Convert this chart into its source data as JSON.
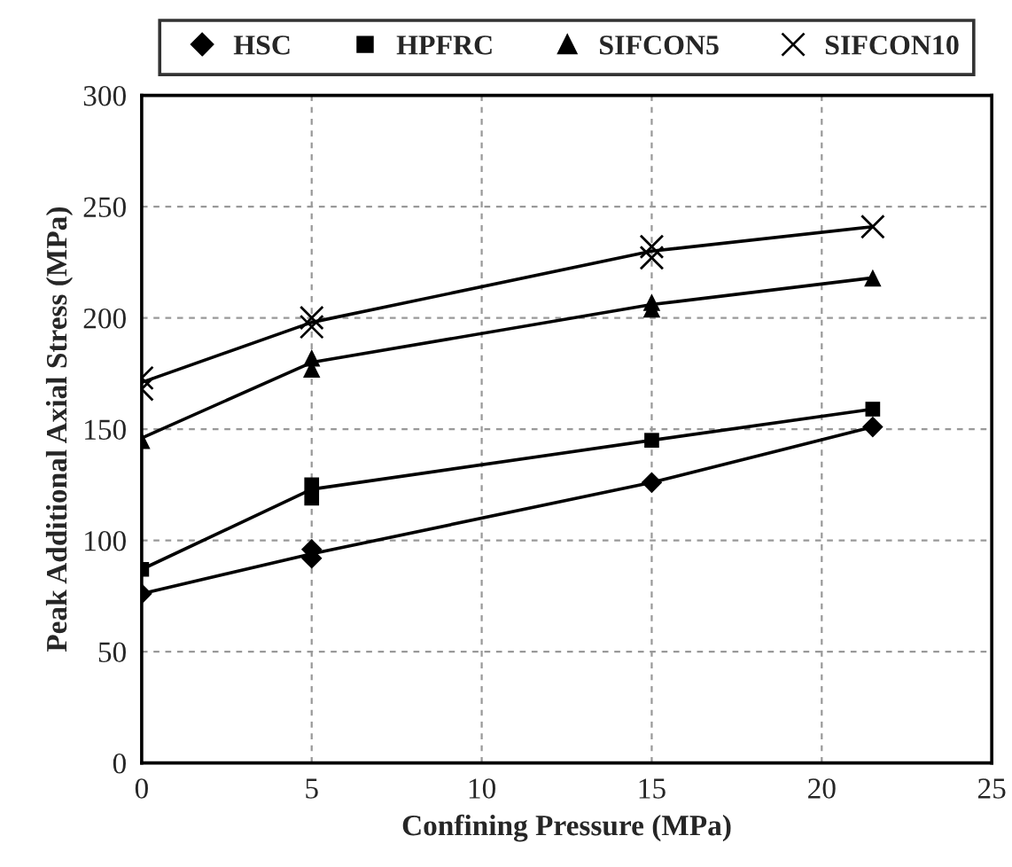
{
  "chart_data": {
    "type": "scatter",
    "xlabel": "Confining Pressure (MPa)",
    "ylabel": "Peak Additional Axial Stress (MPa)",
    "xlim": [
      0,
      25
    ],
    "xticks": [
      0,
      5,
      10,
      15,
      20,
      25
    ],
    "ylim": [
      0,
      300
    ],
    "yticks": [
      0,
      50,
      100,
      150,
      200,
      250,
      300
    ],
    "grid": true,
    "legend": "top",
    "series": [
      {
        "name": "HSC",
        "color": "#000000",
        "marker": "diamond",
        "x": [
          0,
          5,
          5,
          15,
          21.5
        ],
        "values": [
          76,
          96,
          92,
          126,
          151
        ]
      },
      {
        "name": "HPFRC",
        "color": "#000000",
        "marker": "square",
        "x": [
          0,
          5,
          5,
          15,
          21.5
        ],
        "values": [
          87,
          125,
          119,
          145,
          159
        ]
      },
      {
        "name": "SIFCON5",
        "color": "#000000",
        "marker": "triangle",
        "x": [
          0,
          5,
          5,
          15,
          15,
          21.5
        ],
        "values": [
          145,
          182,
          177,
          207,
          204,
          218
        ]
      },
      {
        "name": "SIFCON10",
        "color": "#000000",
        "marker": "cross",
        "x": [
          0,
          0,
          5,
          5,
          15,
          15,
          21.5
        ],
        "values": [
          173,
          168,
          200,
          196,
          232,
          227,
          241
        ]
      },
      {
        "type": "line",
        "color": "#000000",
        "marker": "none",
        "line_style": "solid",
        "x": [
          0,
          5,
          15,
          21.5
        ],
        "values": [
          76,
          94,
          126,
          151
        ]
      },
      {
        "type": "line",
        "color": "#000000",
        "marker": "none",
        "line_style": "solid",
        "x": [
          0,
          5,
          15,
          21.5
        ],
        "values": [
          87,
          123,
          145,
          159
        ]
      },
      {
        "type": "line",
        "color": "#000000",
        "marker": "none",
        "line_style": "solid",
        "x": [
          0,
          5,
          15,
          21.5
        ],
        "values": [
          146,
          180,
          206,
          218
        ]
      },
      {
        "type": "line",
        "color": "#000000",
        "marker": "none",
        "line_style": "solid",
        "x": [
          0,
          5,
          15,
          21.5
        ],
        "values": [
          171,
          198,
          230,
          241
        ]
      }
    ]
  }
}
